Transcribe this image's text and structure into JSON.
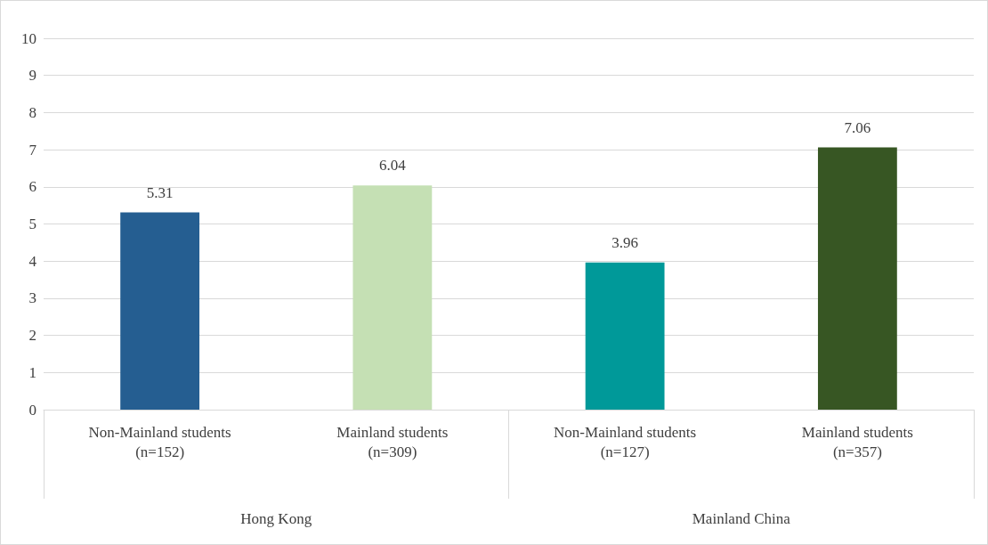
{
  "chart_data": {
    "type": "bar",
    "categories": [
      "Non-Mainland students\n(n=152)",
      "Mainland students\n(n=309)",
      "Non-Mainland students\n(n=127)",
      "Mainland students\n(n=357)"
    ],
    "values": [
      5.31,
      6.04,
      3.96,
      7.06
    ],
    "colors": [
      "#255e91",
      "#c5e0b4",
      "#009999",
      "#375623"
    ],
    "ylim": [
      0,
      10
    ],
    "yticks": [
      0,
      1,
      2,
      3,
      4,
      5,
      6,
      7,
      8,
      9,
      10
    ],
    "grid": "y",
    "data_labels": true,
    "annotations": [
      "Hong Kong",
      "Mainland China"
    ]
  }
}
